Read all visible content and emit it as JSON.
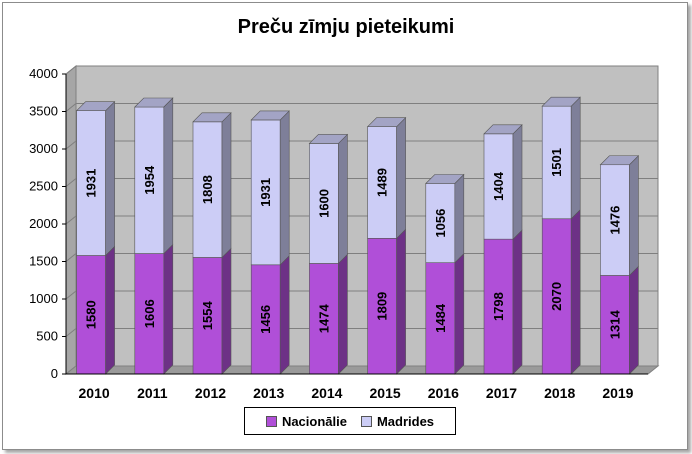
{
  "chart_data": {
    "type": "bar",
    "stacked": true,
    "three_d": true,
    "title": "Preču zīmju pieteikumi",
    "categories": [
      "2010",
      "2011",
      "2012",
      "2013",
      "2014",
      "2015",
      "2016",
      "2017",
      "2018",
      "2019"
    ],
    "series": [
      {
        "name": "Nacionālie",
        "color": "#b04fd8",
        "values": [
          1580,
          1606,
          1554,
          1456,
          1474,
          1809,
          1484,
          1798,
          2070,
          1314
        ]
      },
      {
        "name": "Madrides",
        "color": "#cccdf6",
        "values": [
          1931,
          1954,
          1808,
          1931,
          1600,
          1489,
          1056,
          1404,
          1501,
          1476
        ]
      }
    ],
    "yticks": [
      "0",
      "500",
      "1000",
      "1500",
      "2000",
      "2500",
      "3000",
      "3500",
      "4000"
    ],
    "ylim": [
      0,
      4000
    ],
    "grid": true,
    "legend_position": "bottom",
    "wall_color": "#c0c0c0"
  }
}
